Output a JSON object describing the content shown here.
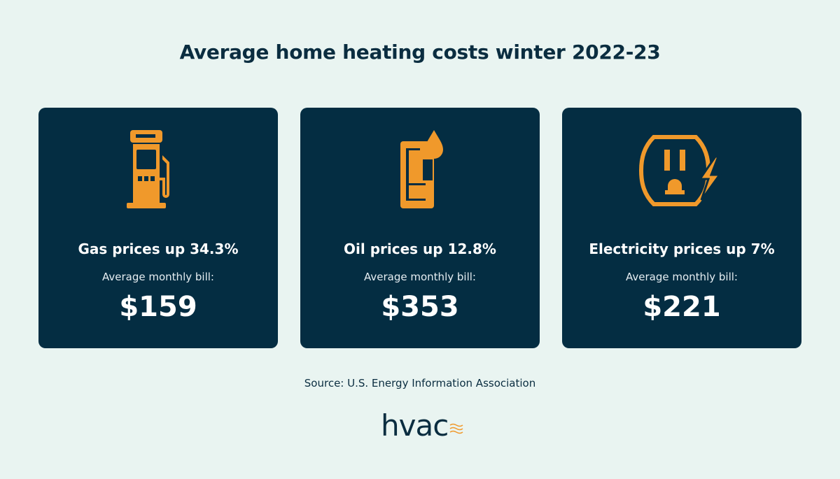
{
  "title": "Average home heating costs winter 2022-23",
  "colors": {
    "background": "#e9f4f1",
    "card": "#042d42",
    "accent": "#f0992b",
    "text": "#0a2d40"
  },
  "cards": [
    {
      "icon": "gas-pump-icon",
      "heading": "Gas prices up 34.3%",
      "subtitle": "Average monthly bill:",
      "price": "$159"
    },
    {
      "icon": "oil-barrel-icon",
      "heading": "Oil prices up 12.8%",
      "subtitle": "Average monthly bill:",
      "price": "$353"
    },
    {
      "icon": "electric-outlet-icon",
      "heading": "Electricity prices up 7%",
      "subtitle": "Average monthly bill:",
      "price": "$221"
    }
  ],
  "source": "Source: U.S. Energy Information Association",
  "logo": "hvac"
}
